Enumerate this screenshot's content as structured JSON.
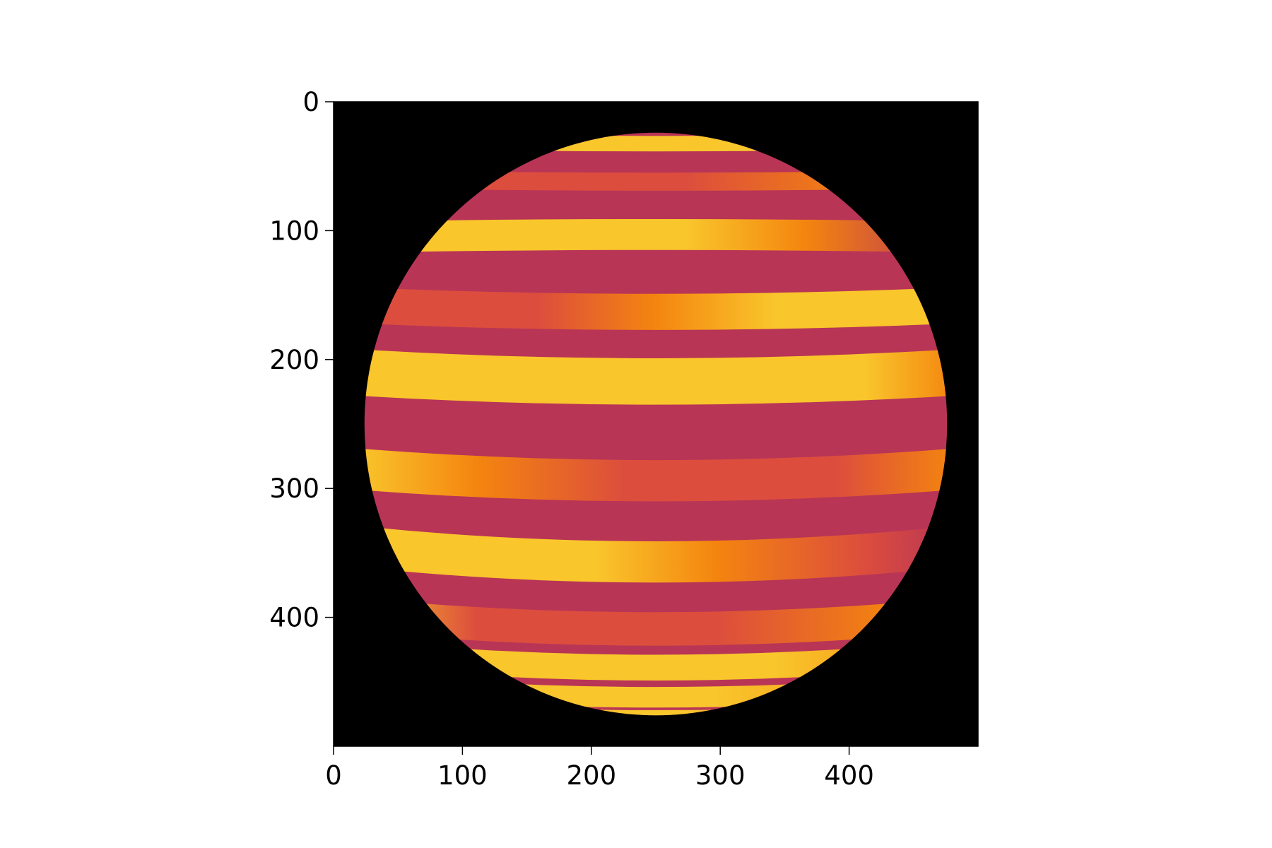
{
  "chart_data": {
    "type": "heatmap",
    "title": "",
    "xlabel": "",
    "ylabel": "",
    "image_size": [
      500,
      500
    ],
    "xlim": [
      0,
      500
    ],
    "ylim": [
      500,
      0
    ],
    "x_ticks": [
      0,
      100,
      200,
      300,
      400
    ],
    "x_tick_labels": [
      "0",
      "100",
      "200",
      "300",
      "400"
    ],
    "y_ticks": [
      0,
      100,
      200,
      300,
      400
    ],
    "y_tick_labels": [
      "0",
      "100",
      "200",
      "300",
      "400"
    ],
    "grid": false,
    "background_color": "#000000",
    "disk": {
      "center": [
        250,
        250
      ],
      "radius": 226
    },
    "colors": {
      "dark_band": "#b83556",
      "bright_band": "#f9c62c",
      "mid_orange": "#f4850f",
      "mid_red": "#dc4d3d"
    }
  }
}
